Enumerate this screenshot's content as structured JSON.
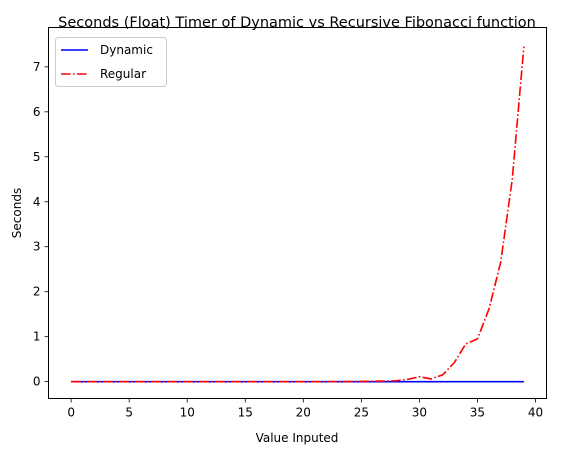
{
  "chart_data": {
    "type": "line",
    "title": "Seconds (Float) Timer of Dynamic vs Recursive Fibonacci function",
    "xlabel": "Value Inputed",
    "ylabel": "Seconds",
    "xlim": [
      -1.95,
      40.95
    ],
    "ylim": [
      -0.375,
      7.875
    ],
    "xticks": [
      0,
      5,
      10,
      15,
      20,
      25,
      30,
      35,
      40
    ],
    "yticks": [
      0,
      1,
      2,
      3,
      4,
      5,
      6,
      7
    ],
    "grid": false,
    "legend_position": "top-left",
    "series": [
      {
        "name": "Dynamic",
        "color": "#0000ff",
        "style": "solid",
        "x": [
          0,
          1,
          2,
          3,
          4,
          5,
          6,
          7,
          8,
          9,
          10,
          11,
          12,
          13,
          14,
          15,
          16,
          17,
          18,
          19,
          20,
          21,
          22,
          23,
          24,
          25,
          26,
          27,
          28,
          29,
          30,
          31,
          32,
          33,
          34,
          35,
          36,
          37,
          38,
          39
        ],
        "y": [
          0,
          0,
          0,
          0,
          0,
          0,
          0,
          0,
          0,
          0,
          0,
          0,
          0,
          0,
          0,
          0,
          0,
          0,
          0,
          0,
          0,
          0,
          0,
          0,
          0,
          0,
          0,
          0,
          0,
          0,
          0,
          0,
          0,
          0,
          0,
          0,
          0,
          0,
          0,
          0
        ]
      },
      {
        "name": "Regular",
        "color": "#ff0000",
        "style": "dashdot",
        "x": [
          0,
          1,
          2,
          3,
          4,
          5,
          6,
          7,
          8,
          9,
          10,
          11,
          12,
          13,
          14,
          15,
          16,
          17,
          18,
          19,
          20,
          21,
          22,
          23,
          24,
          25,
          26,
          27,
          28,
          29,
          30,
          31,
          32,
          33,
          34,
          35,
          36,
          37,
          38,
          39
        ],
        "y": [
          0,
          0,
          0,
          0,
          0,
          0,
          0,
          0,
          0,
          0,
          0,
          0,
          0,
          0,
          0,
          0,
          0,
          0,
          0,
          0,
          0,
          0,
          0,
          0.002,
          0.003,
          0.005,
          0.008,
          0.013,
          0.02,
          0.05,
          0.11,
          0.06,
          0.15,
          0.42,
          0.84,
          0.95,
          1.62,
          2.65,
          4.5,
          7.45
        ]
      }
    ]
  }
}
